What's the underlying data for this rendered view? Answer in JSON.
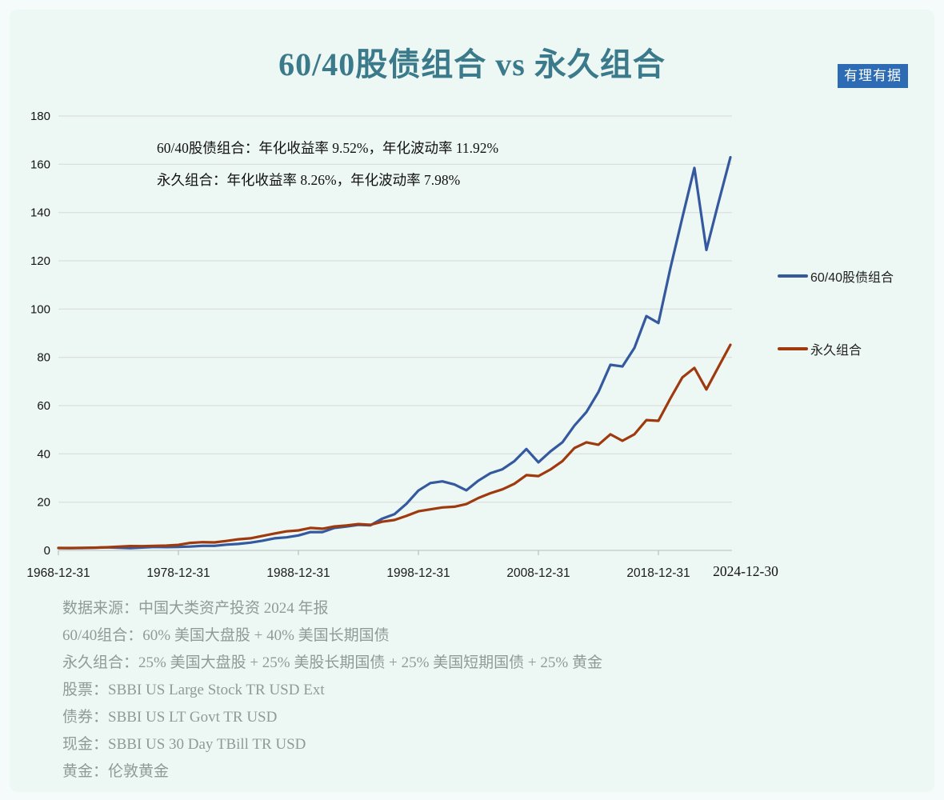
{
  "title": "60/40股债组合 vs 永久组合",
  "badge": "有理有据",
  "annotations": [
    "60/40股债组合：年化收益率 9.52%，年化波动率 11.92%",
    "永久组合：年化收益率 8.26%，年化波动率 7.98%"
  ],
  "legend": {
    "items": [
      {
        "label": "60/40股债组合",
        "color": "#34599e"
      },
      {
        "label": "永久组合",
        "color": "#9e3a0e"
      }
    ]
  },
  "footnotes": [
    "数据来源：中国大类资产投资 2024 年报",
    "60/40组合：60% 美国大盘股 + 40% 美国长期国债",
    "永久组合：25% 美国大盘股 + 25% 美股长期国债 + 25% 美国短期国债 + 25% 黄金",
    "股票：SBBI US Large Stock TR USD Ext",
    "债券：SBBI US LT Govt TR USD",
    "现金：SBBI US 30 Day TBill TR USD",
    "黄金：伦敦黄金"
  ],
  "colors": {
    "title": "#3a7a8b",
    "badge_bg": "#2d6cb4",
    "badge_text": "#ffffff",
    "series_6040": "#34599e",
    "series_permanent": "#9e3a0e",
    "gridline": "#dadedd",
    "axis": "#c3c9c9",
    "footnote_text": "#8f9b97",
    "panel_bg": "#edf7f4"
  },
  "chart_data": {
    "type": "line",
    "title": "60/40股债组合 vs 永久组合",
    "xlabel": "",
    "ylabel": "",
    "ylim": [
      0,
      180
    ],
    "y_ticks": [
      0,
      20,
      40,
      60,
      80,
      100,
      120,
      140,
      160,
      180
    ],
    "grid": true,
    "legend_position": "right",
    "x_years": [
      1968,
      1969,
      1970,
      1971,
      1972,
      1973,
      1974,
      1975,
      1976,
      1977,
      1978,
      1979,
      1980,
      1981,
      1982,
      1983,
      1984,
      1985,
      1986,
      1987,
      1988,
      1989,
      1990,
      1991,
      1992,
      1993,
      1994,
      1995,
      1996,
      1997,
      1998,
      1999,
      2000,
      2001,
      2002,
      2003,
      2004,
      2005,
      2006,
      2007,
      2008,
      2009,
      2010,
      2011,
      2012,
      2013,
      2014,
      2015,
      2016,
      2017,
      2018,
      2019,
      2020,
      2021,
      2022,
      2023,
      2024
    ],
    "x_tick_years": [
      1968,
      1978,
      1988,
      1998,
      2008,
      2018
    ],
    "x_tick_labels": [
      "1968-12-31",
      "1978-12-31",
      "1988-12-31",
      "1998-12-31",
      "2008-12-31",
      "2018-12-31"
    ],
    "x_end_label": "2024-12-30",
    "series": [
      {
        "name": "60/40股债组合",
        "color": "#34599e",
        "annualized_return_pct": 9.52,
        "annualized_volatility_pct": 11.92,
        "values": [
          1.0,
          0.93,
          1.0,
          1.1,
          1.25,
          1.1,
          0.93,
          1.18,
          1.42,
          1.37,
          1.43,
          1.58,
          1.9,
          1.88,
          2.4,
          2.7,
          3.2,
          4.0,
          5.0,
          5.4,
          6.2,
          7.6,
          7.6,
          9.3,
          9.9,
          10.6,
          10.4,
          13.2,
          15.0,
          19.3,
          24.8,
          27.9,
          28.6,
          27.3,
          24.9,
          28.9,
          32.0,
          33.6,
          37.0,
          42.0,
          36.5,
          41.0,
          44.8,
          51.7,
          57.3,
          65.6,
          76.9,
          76.2,
          83.9,
          97.1,
          94.2,
          117.0,
          138.0,
          158.5,
          124.5,
          144.0,
          162.9
        ]
      },
      {
        "name": "永久组合",
        "color": "#9e3a0e",
        "annualized_return_pct": 8.26,
        "annualized_volatility_pct": 7.98,
        "values": [
          1.0,
          0.99,
          1.05,
          1.12,
          1.3,
          1.55,
          1.8,
          1.75,
          1.9,
          2.0,
          2.3,
          3.1,
          3.4,
          3.3,
          3.9,
          4.6,
          5.0,
          6.0,
          7.0,
          7.9,
          8.3,
          9.3,
          9.0,
          9.9,
          10.3,
          10.9,
          10.6,
          11.9,
          12.6,
          14.3,
          16.2,
          17.0,
          17.8,
          18.1,
          19.2,
          21.7,
          23.7,
          25.3,
          27.6,
          31.2,
          30.8,
          33.5,
          37.0,
          42.4,
          44.8,
          43.8,
          48.1,
          45.4,
          48.1,
          54.0,
          53.7,
          63.0,
          71.7,
          75.6,
          66.7,
          76.0,
          85.2
        ]
      }
    ]
  }
}
